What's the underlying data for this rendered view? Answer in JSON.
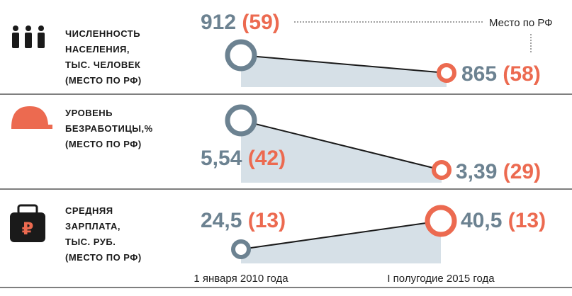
{
  "annotation": "Место по РФ",
  "x_labels": [
    "1 января 2010 года",
    "I полугодие 2015 года"
  ],
  "rows": [
    {
      "label": [
        "ЧИСЛЕННОСТЬ",
        "НАСЕЛЕНИЯ,",
        "ТЫС. ЧЕЛОВЕК",
        "(МЕСТО ПО РФ)"
      ],
      "start": {
        "value": "912",
        "rank": "(59)"
      },
      "end": {
        "value": "865",
        "rank": "(58)"
      }
    },
    {
      "label": [
        "УРОВЕНЬ",
        "БЕЗРАБОТИЦЫ,%",
        "(МЕСТО ПО РФ)"
      ],
      "start": {
        "value": "5,54",
        "rank": "(42)"
      },
      "end": {
        "value": "3,39",
        "rank": "(29)"
      }
    },
    {
      "label": [
        "СРЕДНЯЯ",
        "ЗАРПЛАТА,",
        "ТЫС. РУБ.",
        "(МЕСТО ПО РФ)"
      ],
      "start": {
        "value": "24,5",
        "rank": "(13)"
      },
      "end": {
        "value": "40,5",
        "rank": "(13)"
      }
    }
  ]
}
